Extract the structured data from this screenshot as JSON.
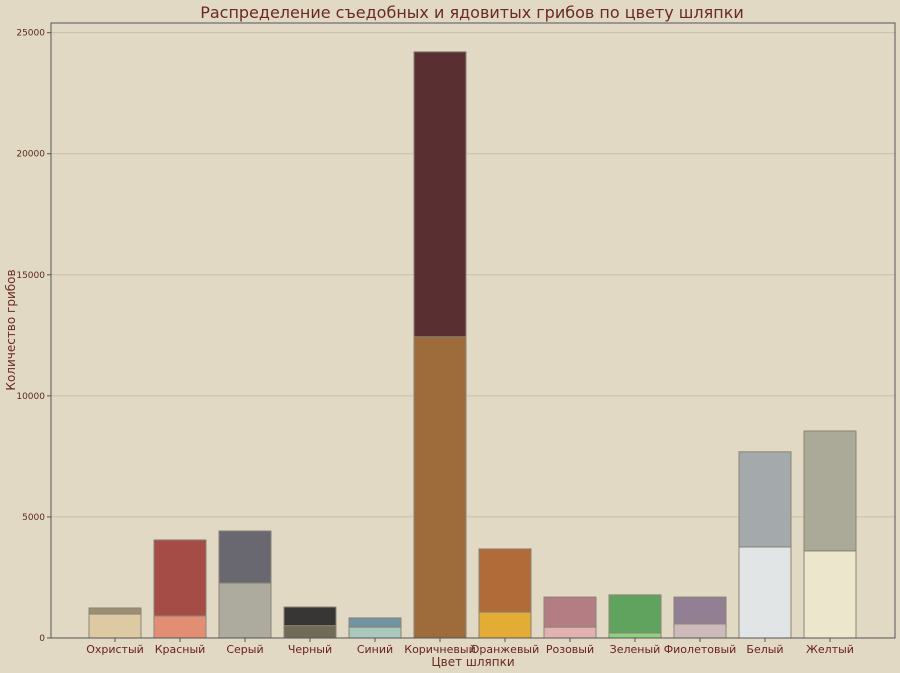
{
  "chart_data": {
    "type": "bar",
    "stacked": true,
    "title": "Распределение съедобных и ядовитых грибов по цвету шляпки",
    "xlabel": "Цвет шляпки",
    "ylabel": "Количество грибов",
    "ylim": [
      0,
      25400
    ],
    "yticks": [
      0,
      5000,
      10000,
      15000,
      20000,
      25000
    ],
    "grid": true,
    "categories": [
      "Охристый",
      "Красный",
      "Серый",
      "Черный",
      "Синий",
      "Коричневый",
      "Оранжевый",
      "Розовый",
      "Зеленый",
      "Фиолетовый",
      "Белый",
      "Желтый"
    ],
    "series": [
      {
        "layer": "lower",
        "values": [
          990,
          910,
          2270,
          510,
          450,
          12440,
          1070,
          450,
          210,
          580,
          3760,
          3600
        ],
        "colors": [
          "#dcc9a0",
          "#e08a70",
          "#aaa89c",
          "#6a6450",
          "#a6c8bc",
          "#9a6634",
          "#e3aa2c",
          "#e0b0ae",
          "#8cd080",
          "#cbb9ba",
          "#e2e6e8",
          "#ece8cc"
        ]
      },
      {
        "layer": "upper",
        "values": [
          250,
          3140,
          2150,
          770,
          380,
          11770,
          2610,
          1240,
          1570,
          1110,
          3930,
          4950
        ],
        "colors": [
          "#9a8a70",
          "#a0443e",
          "#62616a",
          "#2d2d2d",
          "#6a8fa0",
          "#51262a",
          "#ad6530",
          "#b07880",
          "#58a058",
          "#8e7a90",
          "#a0a6aa",
          "#a8a896"
        ]
      }
    ]
  }
}
